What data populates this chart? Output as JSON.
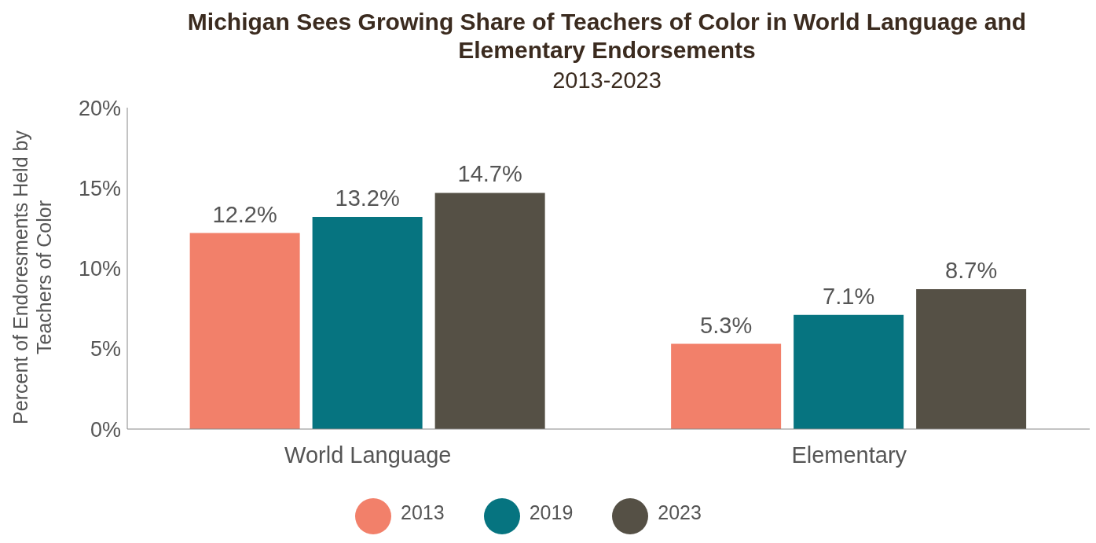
{
  "chart_data": {
    "type": "bar",
    "title": "Michigan Sees Growing Share of Teachers of Color in World Language and Elementary Endorsements",
    "subtitle": "2013-2023",
    "ylabel": "Percent of Endoresments Held by Teachers of Color",
    "categories": [
      "World Language",
      "Elementary"
    ],
    "series": [
      {
        "name": "2013",
        "color": "#f2806a",
        "values": [
          12.2,
          5.3
        ],
        "value_labels": [
          "12.2%",
          "5.3%"
        ]
      },
      {
        "name": "2019",
        "color": "#067480",
        "values": [
          13.2,
          7.1
        ],
        "value_labels": [
          "13.2%",
          "7.1%"
        ]
      },
      {
        "name": "2023",
        "color": "#555045",
        "values": [
          14.7,
          8.7
        ],
        "value_labels": [
          "14.7%",
          "8.7%"
        ]
      }
    ],
    "ylim": [
      0,
      20
    ],
    "yticks": [
      {
        "value": 0,
        "label": "0%"
      },
      {
        "value": 5,
        "label": "5%"
      },
      {
        "value": 10,
        "label": "10%"
      },
      {
        "value": 15,
        "label": "15%"
      },
      {
        "value": 20,
        "label": "20%"
      }
    ],
    "grid": false,
    "legend": "bottom"
  }
}
